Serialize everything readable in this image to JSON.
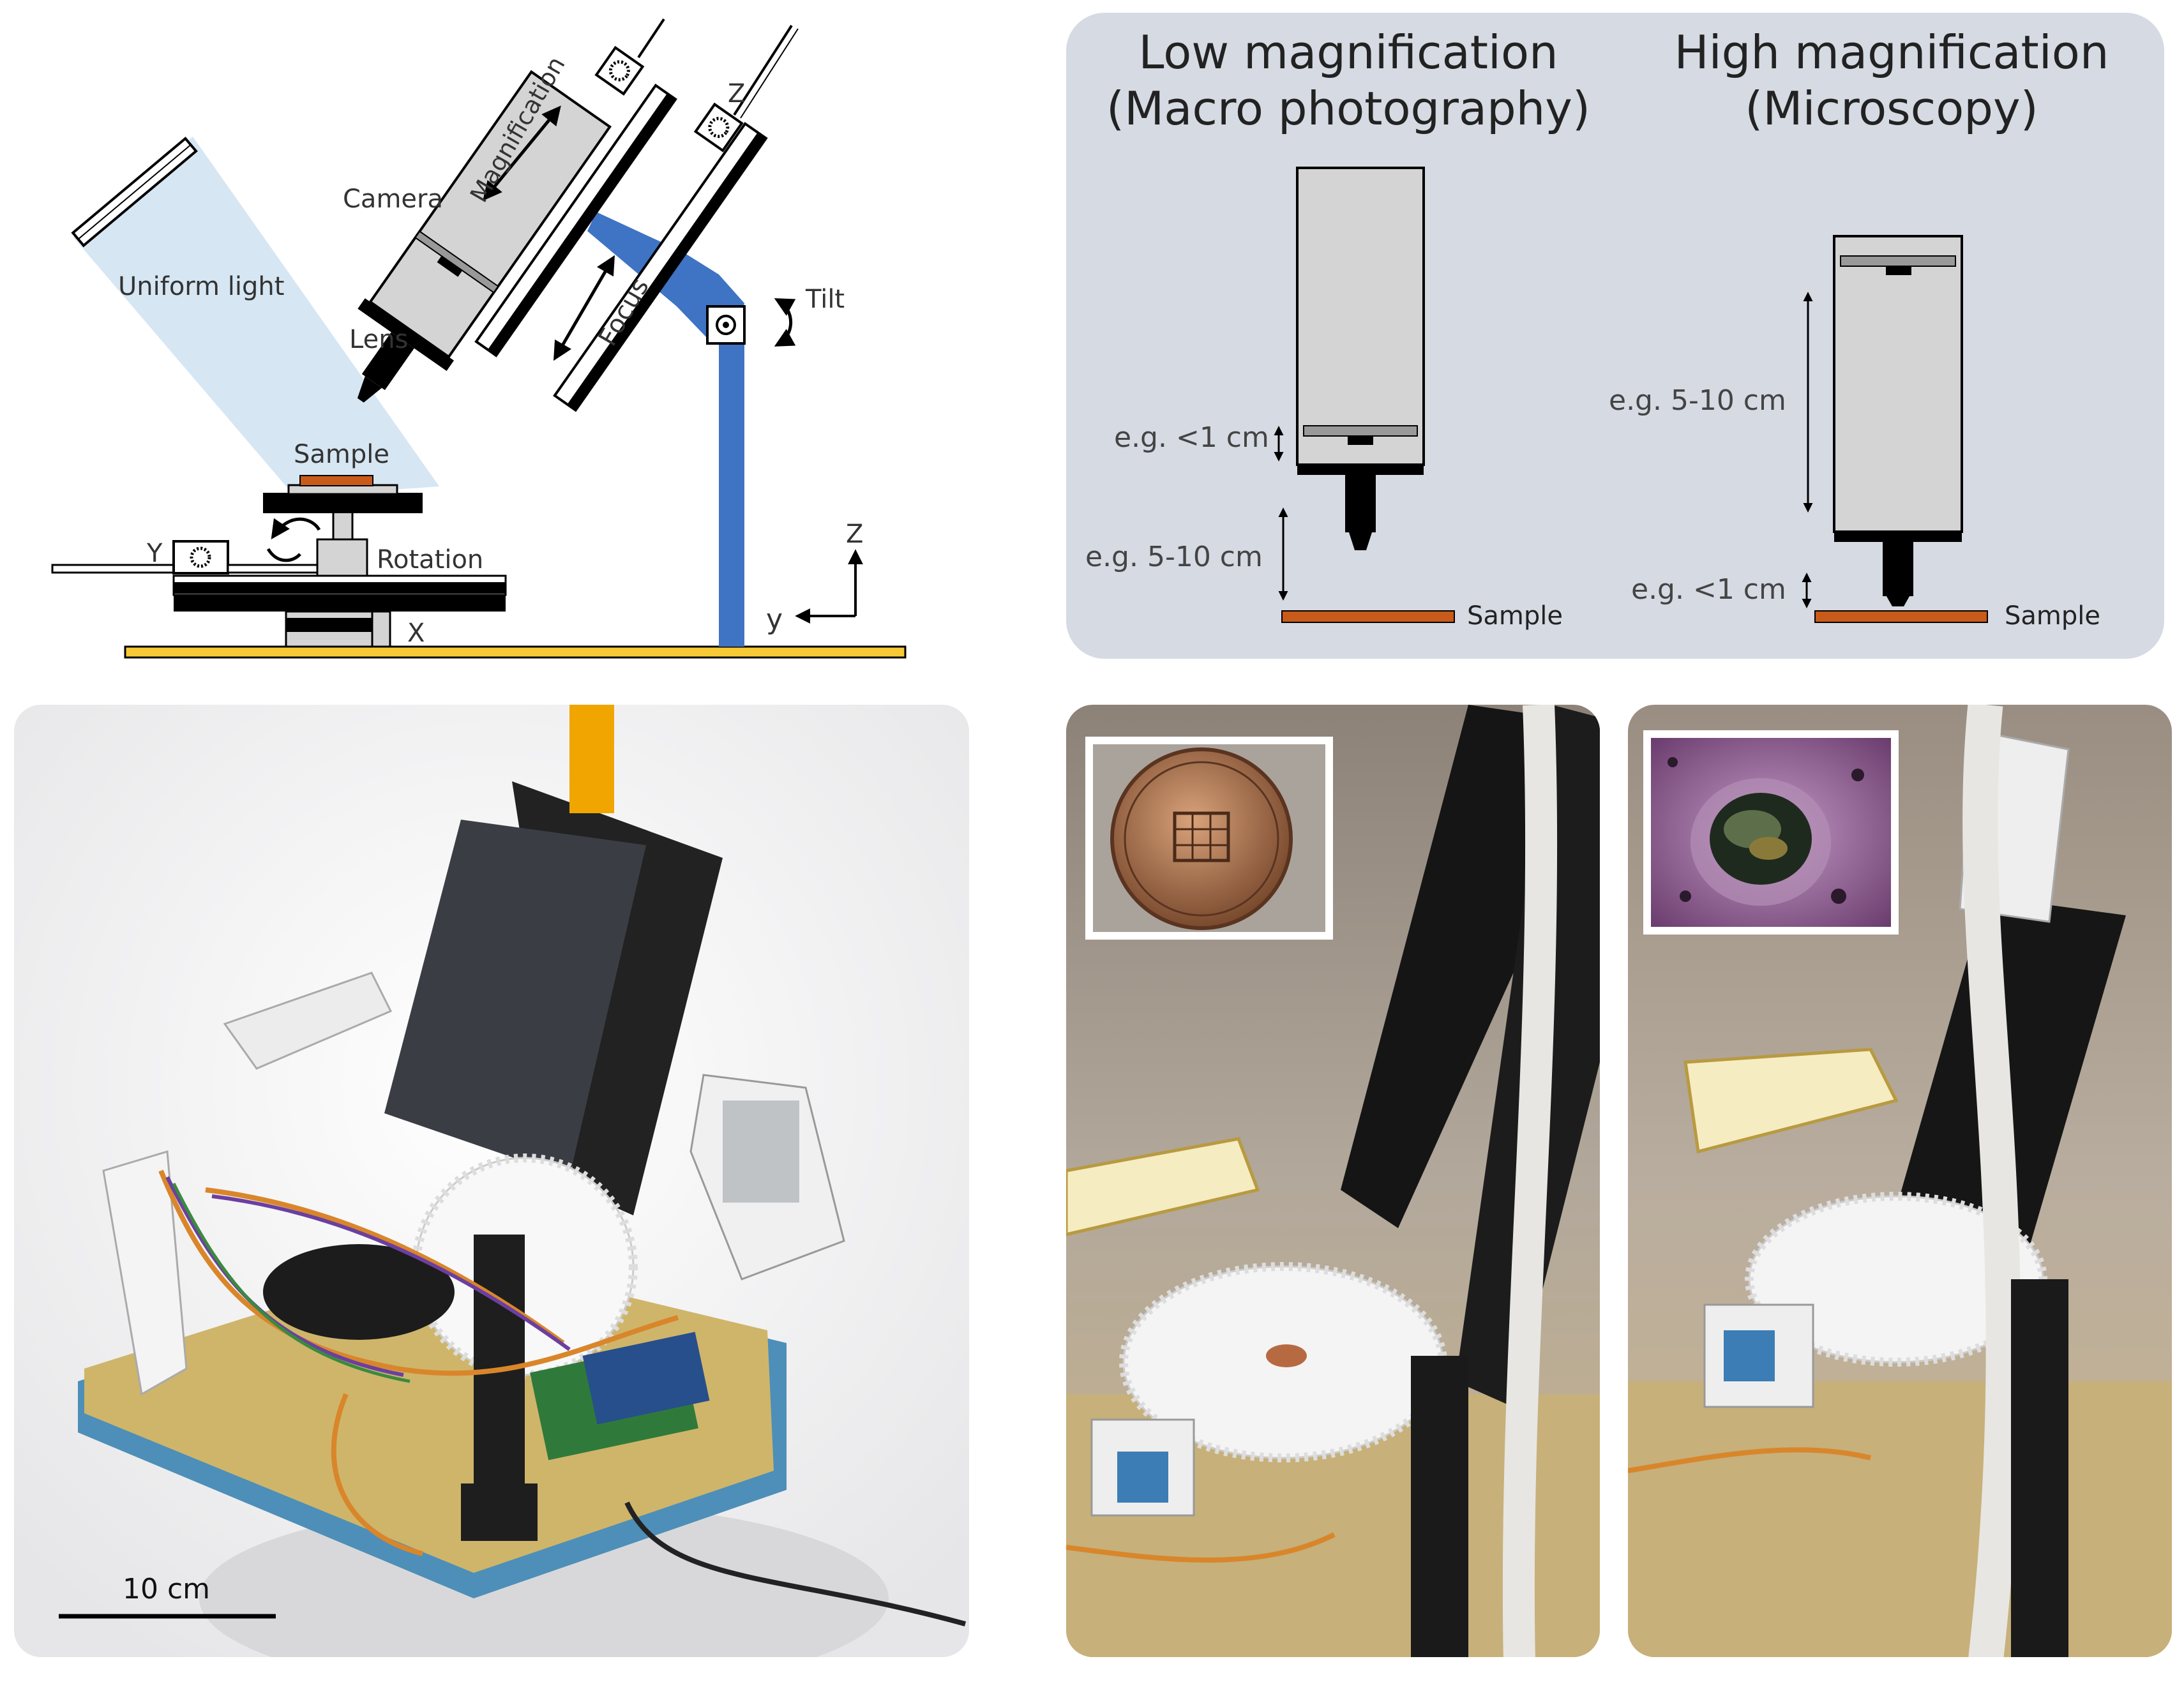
{
  "schematic": {
    "camera": "Camera",
    "magnification": "Magnification",
    "lens": "Lens",
    "uniform_light": "Uniform light",
    "focus": "Focus",
    "tilt": "Tilt",
    "z_motor": "Z",
    "sample": "Sample",
    "rotation": "Rotation",
    "y_axis": "Y",
    "x_axis": "X",
    "axes_z": "Z",
    "axes_y": "y"
  },
  "comparison": {
    "low": {
      "title_line1": "Low magnification",
      "title_line2": "(Macro photography)",
      "sensor_dist": "e.g. <1 cm",
      "sample_dist": "e.g. 5-10 cm",
      "sample": "Sample"
    },
    "high": {
      "title_line1": "High magnification",
      "title_line2": "(Microscopy)",
      "sensor_dist": "e.g. 5-10 cm",
      "sample_dist": "e.g. <1 cm",
      "sample": "Sample"
    },
    "colors": {
      "panel_bg": "#d5dae3",
      "sample": "#c85a1a",
      "camera_body": "#d4d4d4"
    }
  },
  "photo": {
    "scale_bar_label": "10 cm"
  },
  "colors": {
    "stand_blue": "#3f73c4",
    "base_yellow": "#f7c935",
    "light_beam": "#d6e6f3",
    "sample_orange": "#c85a1a"
  }
}
